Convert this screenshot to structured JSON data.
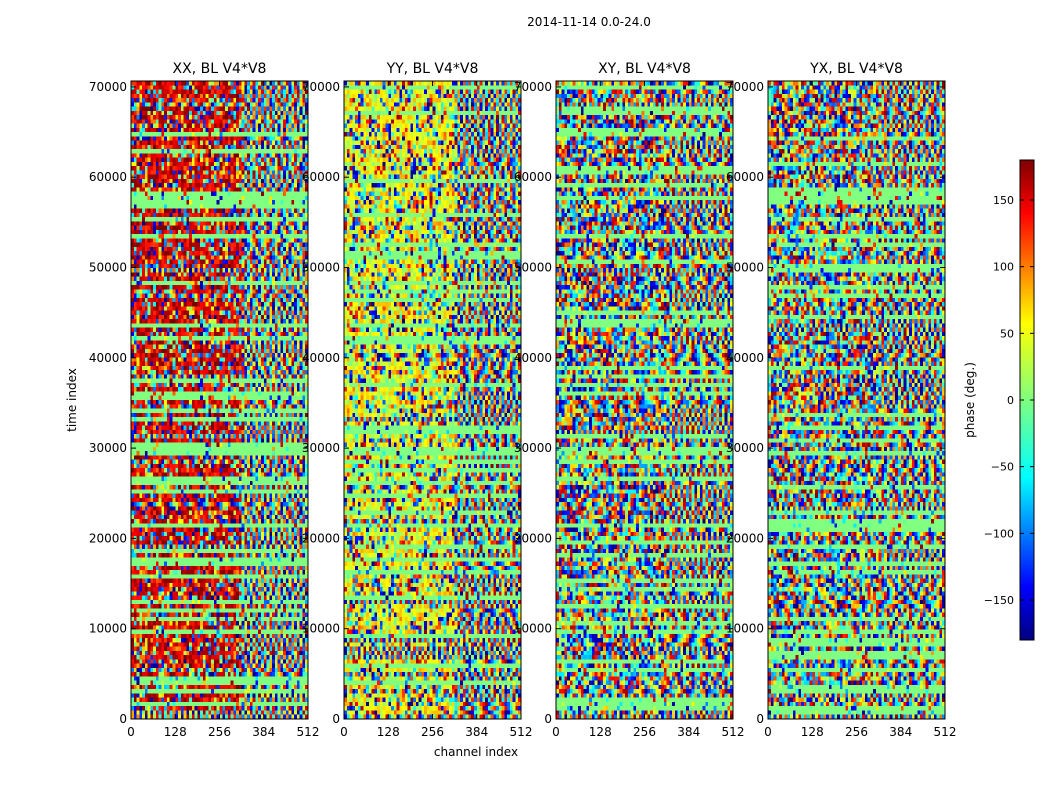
{
  "figure_title": "2014-11-14 0.0-24.0",
  "chart_data": {
    "type": "heatmap",
    "title": "2014-11-14 0.0-24.0",
    "xlabel": "channel index",
    "ylabel": "time index",
    "x_ticks": [
      "0",
      "128",
      "256",
      "384",
      "512"
    ],
    "y_ticks": [
      "0",
      "10000",
      "20000",
      "30000",
      "40000",
      "50000",
      "60000",
      "70000"
    ],
    "xlim": [
      0,
      512
    ],
    "ylim": [
      0,
      70656
    ],
    "colorbar": {
      "label": "phase (deg.)",
      "range": [
        -180,
        180
      ],
      "ticks": [
        "150",
        "100",
        "50",
        "0",
        "−50",
        "−100",
        "−150"
      ],
      "colormap": [
        "#00007f",
        "#0000ff",
        "#007fff",
        "#00ffff",
        "#7fff7f",
        "#ffff00",
        "#ff7f00",
        "#ff0000",
        "#7f0000"
      ]
    },
    "panels": [
      {
        "title": "XX, BL V4*V8",
        "seed": 11,
        "bias": 150,
        "bias_strength": 0.55
      },
      {
        "title": "YY, BL V4*V8",
        "seed": 23,
        "bias": 40,
        "bias_strength": 0.5
      },
      {
        "title": "XY, BL V4*V8",
        "seed": 37,
        "bias": 0,
        "bias_strength": 0.0
      },
      {
        "title": "YX, BL V4*V8",
        "seed": 53,
        "bias": 0,
        "bias_strength": 0.0
      }
    ]
  }
}
